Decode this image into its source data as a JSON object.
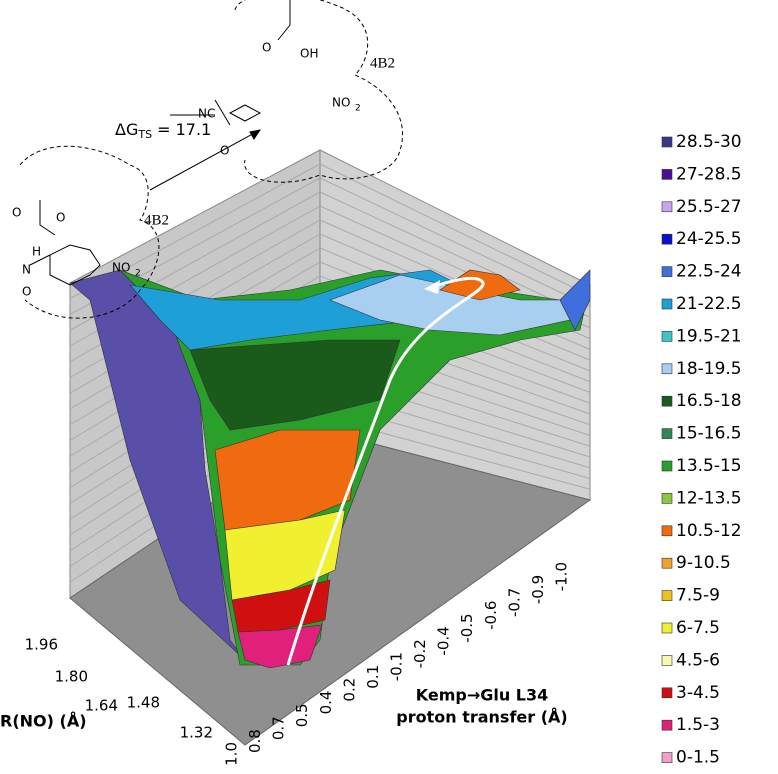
{
  "figure": {
    "annotation": {
      "delta": "ΔG",
      "subscript": "TS",
      "value": " = 17.1"
    },
    "chem": {
      "site_top": "4B2",
      "site_left": "4B2",
      "nc": "NC",
      "no2_top": "NO",
      "no2_top_sub": "2",
      "o_minus": "O",
      "oh": "OH",
      "o_top": "O",
      "o_left": "O",
      "o_left2": "O",
      "h": "H",
      "n": "N",
      "o_ring": "O",
      "no2_left": "NO",
      "no2_left_sub": "2"
    },
    "axes": {
      "y_label": "R(NO) (Å)",
      "y_ticks": [
        "1.96",
        "1.80",
        "1.64",
        "1.48",
        "1.32"
      ],
      "x_label": [
        "Kemp→Glu L34",
        "proton transfer (Å)"
      ],
      "x_ticks": [
        "1.0",
        "0.8",
        "0.7",
        "0.5",
        "0.4",
        "0.2",
        "0.1",
        "-0.1",
        "-0.2",
        "-0.4",
        "-0.5",
        "-0.6",
        "-0.7",
        "-0.9",
        "-1.0"
      ]
    },
    "legend": [
      {
        "label": "28.5-30",
        "color": "#38388a"
      },
      {
        "label": "27-28.5",
        "color": "#4a0f98"
      },
      {
        "label": "25.5-27",
        "color": "#c8a6ee"
      },
      {
        "label": "24-25.5",
        "color": "#0a10c8"
      },
      {
        "label": "22.5-24",
        "color": "#3f6fdc"
      },
      {
        "label": "21-22.5",
        "color": "#1f9fd8"
      },
      {
        "label": "19.5-21",
        "color": "#3cc6c6"
      },
      {
        "label": "18-19.5",
        "color": "#a8cff0"
      },
      {
        "label": "16.5-18",
        "color": "#1a5a1a"
      },
      {
        "label": "15-16.5",
        "color": "#2e8a55"
      },
      {
        "label": "13.5-15",
        "color": "#2aa02a"
      },
      {
        "label": "12-13.5",
        "color": "#8cc83c"
      },
      {
        "label": "10.5-12",
        "color": "#f06a10"
      },
      {
        "label": "9-10.5",
        "color": "#f0a030"
      },
      {
        "label": "7.5-9",
        "color": "#f0c020"
      },
      {
        "label": "6-7.5",
        "color": "#f0f030"
      },
      {
        "label": "4.5-6",
        "color": "#f8f8b0"
      },
      {
        "label": "3-4.5",
        "color": "#d01010"
      },
      {
        "label": "1.5-3",
        "color": "#e0207a"
      },
      {
        "label": "0-1.5",
        "color": "#f0a0c8"
      }
    ]
  }
}
